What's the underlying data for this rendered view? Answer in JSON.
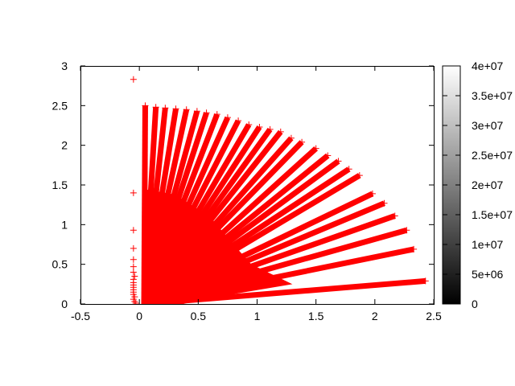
{
  "chart_data": {
    "type": "scatter",
    "title": "",
    "xlabel": "",
    "ylabel": "",
    "xlim": [
      -0.5,
      2.5
    ],
    "ylim": [
      0,
      3
    ],
    "x_ticks": [
      "-0.5",
      "0",
      "0.5",
      "1",
      "1.5",
      "2",
      "2.5"
    ],
    "y_ticks": [
      "0",
      "0.5",
      "1",
      "1.5",
      "2",
      "2.5",
      "3"
    ],
    "grid": false,
    "marker": "plus",
    "marker_color": "#ff0000",
    "rays_note_endpoints": [
      [
        0.05,
        2.5
      ],
      [
        0.14,
        2.48
      ],
      [
        0.22,
        2.47
      ],
      [
        0.31,
        2.46
      ],
      [
        0.4,
        2.45
      ],
      [
        0.49,
        2.43
      ],
      [
        0.57,
        2.41
      ],
      [
        0.66,
        2.39
      ],
      [
        0.75,
        2.35
      ],
      [
        0.84,
        2.31
      ],
      [
        0.93,
        2.26
      ],
      [
        1.02,
        2.23
      ],
      [
        1.11,
        2.2
      ],
      [
        1.2,
        2.17
      ],
      [
        1.29,
        2.09
      ],
      [
        1.38,
        2.04
      ],
      [
        1.5,
        1.96
      ],
      [
        1.6,
        1.87
      ],
      [
        1.69,
        1.8
      ],
      [
        1.78,
        1.7
      ],
      [
        1.87,
        1.62
      ],
      [
        1.98,
        1.39
      ],
      [
        2.08,
        1.27
      ],
      [
        2.17,
        1.11
      ],
      [
        2.27,
        0.93
      ],
      [
        2.33,
        0.69
      ],
      [
        2.43,
        0.29
      ]
    ],
    "isolated_points": [
      [
        -0.05,
        2.83
      ],
      [
        -0.05,
        1.4
      ],
      [
        -0.05,
        0.93
      ],
      [
        -0.05,
        0.7
      ],
      [
        -0.05,
        0.56
      ],
      [
        -0.05,
        0.47
      ],
      [
        -0.05,
        0.4
      ],
      [
        -0.04,
        0.35
      ],
      [
        -0.05,
        0.31
      ],
      [
        -0.05,
        0.27
      ],
      [
        -0.05,
        0.24
      ],
      [
        -0.05,
        0.21
      ],
      [
        -0.05,
        0.18
      ],
      [
        -0.05,
        0.15
      ],
      [
        -0.05,
        0.12
      ],
      [
        -0.04,
        0.09
      ],
      [
        -0.05,
        0.06
      ],
      [
        -0.04,
        0.03
      ],
      [
        -0.03,
        0.01
      ]
    ],
    "colorbar": {
      "range": [
        0,
        40000000
      ],
      "ticks": [
        "0",
        "5e+06",
        "1e+07",
        "1.5e+07",
        "2e+07",
        "2.5e+07",
        "3e+07",
        "3.5e+07",
        "4e+07"
      ],
      "palette": [
        "#000000",
        "#ffffff"
      ]
    }
  }
}
